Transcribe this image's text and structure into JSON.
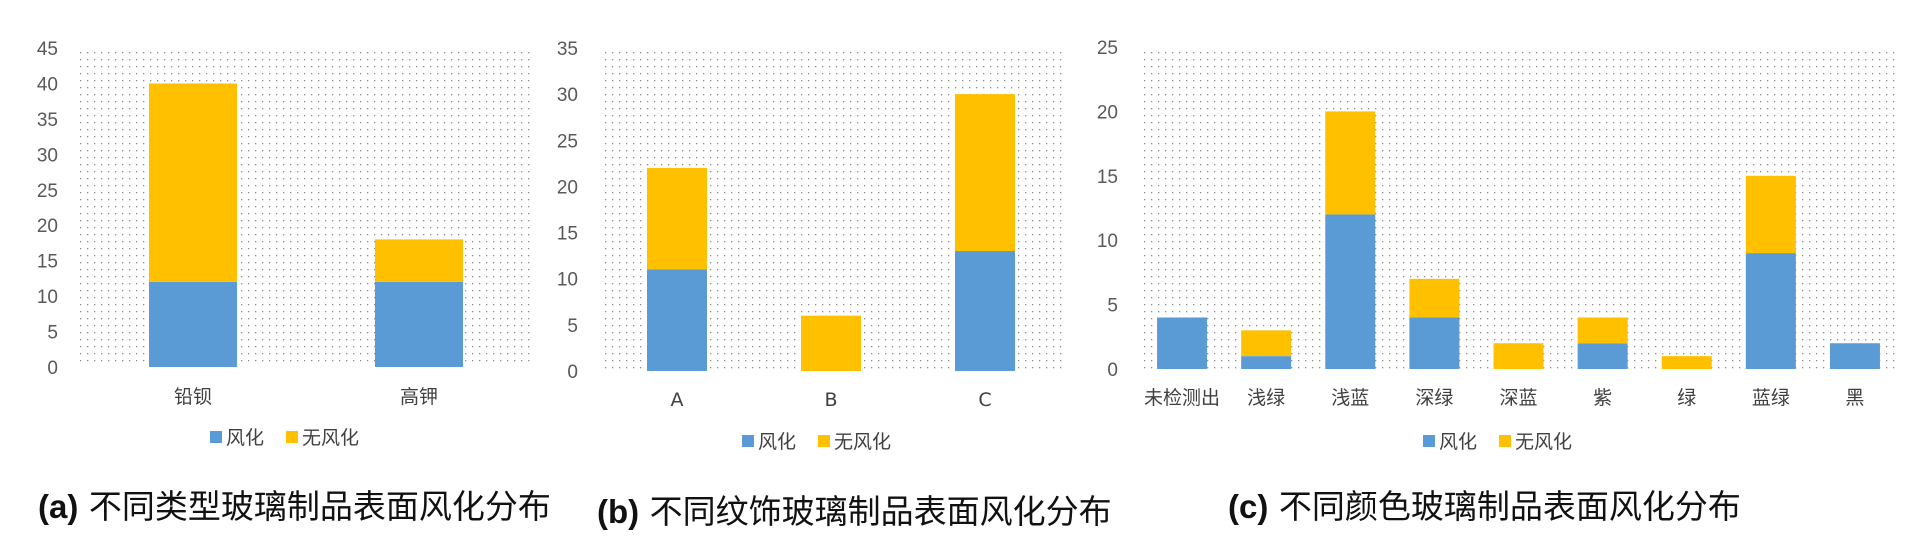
{
  "colors": {
    "series1": "#5B9BD5",
    "series2": "#FFC000"
  },
  "captions": [
    {
      "tag": "(a)",
      "text": "不同类型玻璃制品表面风化分布"
    },
    {
      "tag": "(b)",
      "text": "不同纹饰玻璃制品表面风化分布"
    },
    {
      "tag": "(c)",
      "text": "不同颜色玻璃制品表面风化分布"
    }
  ],
  "chart_data": [
    {
      "type": "bar",
      "stacked": true,
      "categories": [
        "铅钡",
        "高钾"
      ],
      "series": [
        {
          "name": "风化",
          "values": [
            12,
            12
          ]
        },
        {
          "name": "无风化",
          "values": [
            28,
            6
          ]
        }
      ],
      "ylim": [
        0,
        45
      ],
      "yticks": [
        0,
        5,
        10,
        15,
        20,
        25,
        30,
        35,
        40,
        45
      ],
      "grid": "dotted background",
      "legend": "bottom"
    },
    {
      "type": "bar",
      "stacked": true,
      "categories": [
        "A",
        "B",
        "C"
      ],
      "series": [
        {
          "name": "风化",
          "values": [
            11,
            0,
            13
          ]
        },
        {
          "name": "无风化",
          "values": [
            11,
            6,
            17
          ]
        }
      ],
      "ylim": [
        0,
        35
      ],
      "yticks": [
        0,
        5,
        10,
        15,
        20,
        25,
        30,
        35
      ],
      "grid": "dotted background",
      "legend": "bottom"
    },
    {
      "type": "bar",
      "stacked": true,
      "categories": [
        "未检测出",
        "浅绿",
        "浅蓝",
        "深绿",
        "深蓝",
        "紫",
        "绿",
        "蓝绿",
        "黑"
      ],
      "series": [
        {
          "name": "风化",
          "values": [
            4,
            1,
            12,
            4,
            0,
            2,
            0,
            9,
            2
          ]
        },
        {
          "name": "无风化",
          "values": [
            0,
            2,
            8,
            3,
            2,
            2,
            1,
            6,
            0
          ]
        }
      ],
      "ylim": [
        0,
        25
      ],
      "yticks": [
        0,
        5,
        10,
        15,
        20,
        25
      ],
      "grid": "dotted background",
      "legend": "bottom"
    }
  ]
}
